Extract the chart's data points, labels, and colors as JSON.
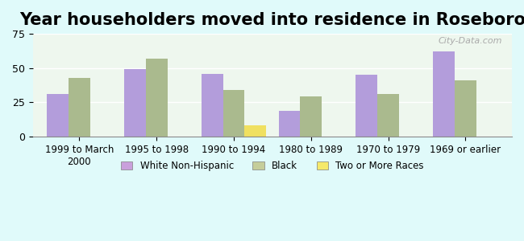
{
  "title": "Year householders moved into residence in Roseboro",
  "categories": [
    "1999 to March\n2000",
    "1995 to 1998",
    "1990 to 1994",
    "1980 to 1989",
    "1970 to 1979",
    "1969 or earlier"
  ],
  "series": {
    "White Non-Hispanic": [
      31,
      49,
      46,
      19,
      45,
      62
    ],
    "Black": [
      43,
      57,
      34,
      29,
      31,
      41
    ],
    "Two or More Races": [
      0,
      0,
      8,
      0,
      0,
      0
    ]
  },
  "colors": {
    "White Non-Hispanic": "#b39ddb",
    "Black": "#aaba8e",
    "Two or More Races": "#f0e060"
  },
  "legend_colors": {
    "White Non-Hispanic": "#c9a0dc",
    "Black": "#c5cd9a",
    "Two or More Races": "#f5e96a"
  },
  "ylim": [
    0,
    75
  ],
  "yticks": [
    0,
    25,
    50,
    75
  ],
  "background_color": "#e0fafa",
  "plot_bg_gradient_top": "#e8f5e9",
  "plot_bg_gradient_bottom": "#f0faf0",
  "bar_width": 0.28,
  "title_fontsize": 15
}
